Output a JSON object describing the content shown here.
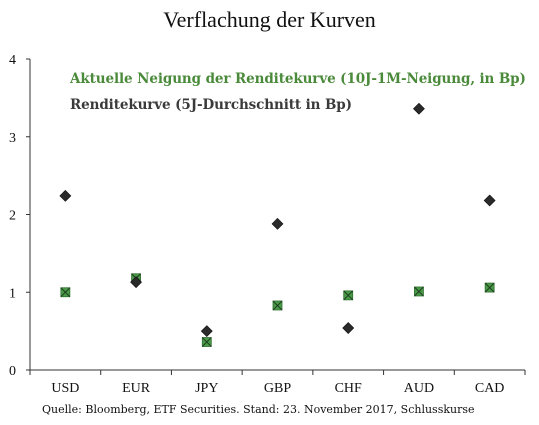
{
  "chart_data": {
    "type": "scatter",
    "title": "Verflachung der Kurven",
    "categories": [
      "USD",
      "EUR",
      "JPY",
      "GBP",
      "CHF",
      "AUD",
      "CAD"
    ],
    "ylim": [
      0,
      4
    ],
    "yticks": [
      0,
      1,
      2,
      3,
      4
    ],
    "grid": false,
    "legend_position": "top-left",
    "series": [
      {
        "name": "Aktuelle Neigung der Renditekurve (10J-1M-Neigung, in Bp)",
        "marker": "square-x",
        "color": "#4a9a4a",
        "values": [
          1.0,
          1.18,
          0.36,
          0.83,
          0.96,
          1.01,
          1.06
        ]
      },
      {
        "name": "Renditekurve (5J-Durchschnitt in Bp)",
        "marker": "diamond",
        "color": "#2a2a2a",
        "values": [
          2.24,
          1.13,
          0.5,
          1.88,
          0.54,
          3.36,
          2.18
        ]
      }
    ],
    "source": "Quelle: Bloomberg, ETF Securities. Stand: 23. November 2017, Schlusskurse"
  }
}
